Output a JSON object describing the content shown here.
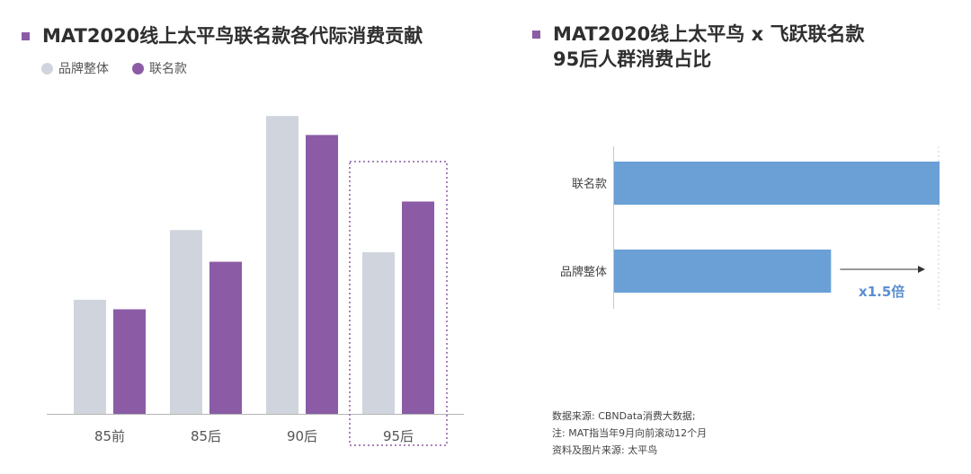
{
  "left_panel": {
    "title": "MAT2020线上太平鸟联名款各代际消费贡献"
  },
  "right_panel": {
    "title": "MAT2020线上太平鸟 x 飞跃联名款\n95后人群消费占比"
  },
  "colors": {
    "accent": "#8b5ca5",
    "grey_bar": "#d0d5dd",
    "purple_bar": "#8b5ca5",
    "blue_bar": "#6aa0d6",
    "annotation": "#5b8fd0"
  },
  "chart_data": [
    {
      "type": "bar",
      "categories": [
        "85前",
        "85后",
        "90后",
        "95后"
      ],
      "series": [
        {
          "name": "品牌整体",
          "values": [
            36,
            58,
            94,
            51
          ]
        },
        {
          "name": "联名款",
          "values": [
            33,
            48,
            88,
            67
          ]
        }
      ],
      "legend_placement": "top-left",
      "ylim": [
        0,
        100
      ],
      "grid": false,
      "highlight_category": "95后"
    },
    {
      "type": "bar",
      "orientation": "horizontal",
      "categories": [
        "联名款",
        "品牌整体"
      ],
      "values": [
        1.5,
        1.0
      ],
      "xlim": [
        0,
        1.5
      ],
      "grid": false,
      "annotation": "x1.5倍"
    }
  ],
  "source": {
    "lines": [
      "数据来源: CBNData消费大数据;",
      "注: MAT指当年9月向前滚动12个月",
      "资料及图片来源: 太平鸟"
    ]
  }
}
